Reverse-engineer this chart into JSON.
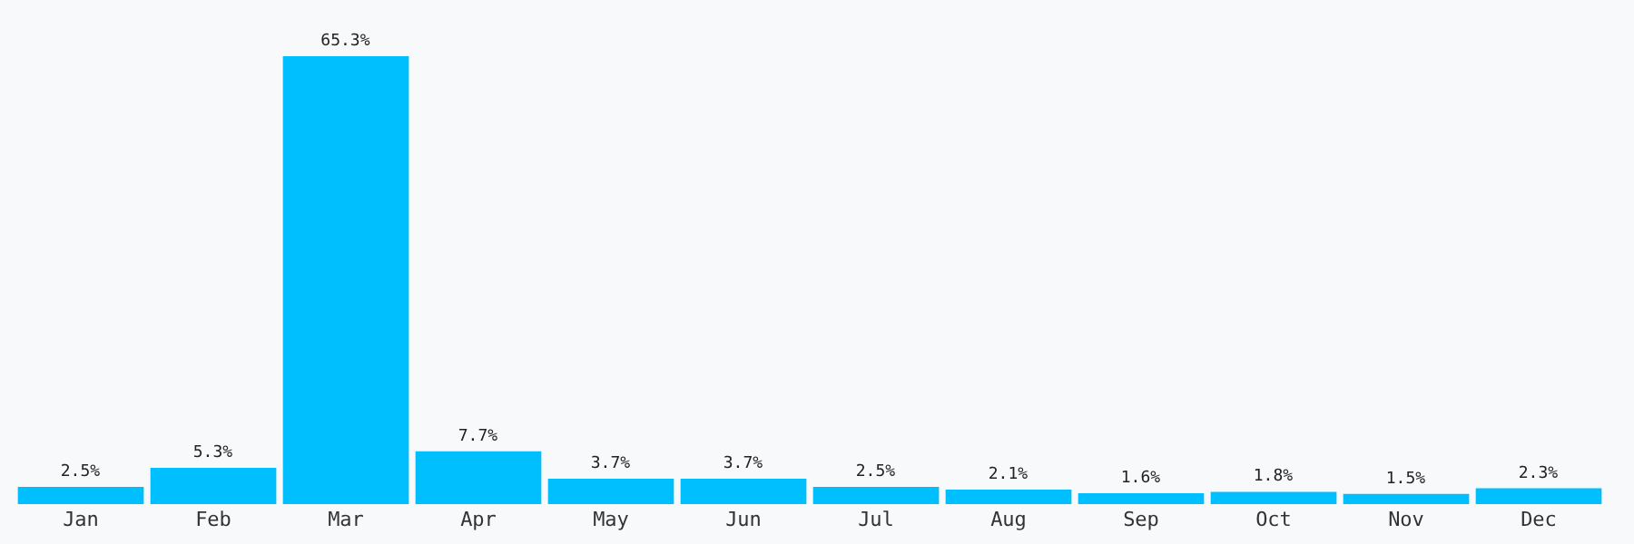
{
  "chart_data": {
    "type": "bar",
    "categories": [
      "Jan",
      "Feb",
      "Mar",
      "Apr",
      "May",
      "Jun",
      "Jul",
      "Aug",
      "Sep",
      "Oct",
      "Nov",
      "Dec"
    ],
    "values": [
      2.5,
      5.3,
      65.3,
      7.7,
      3.7,
      3.7,
      2.5,
      2.1,
      1.6,
      1.8,
      1.5,
      2.3
    ],
    "value_labels": [
      "2.5%",
      "5.3%",
      "65.3%",
      "7.7%",
      "3.7%",
      "3.7%",
      "2.5%",
      "2.1%",
      "1.6%",
      "1.8%",
      "1.5%",
      "2.3%"
    ],
    "color": "#00bfff"
  }
}
